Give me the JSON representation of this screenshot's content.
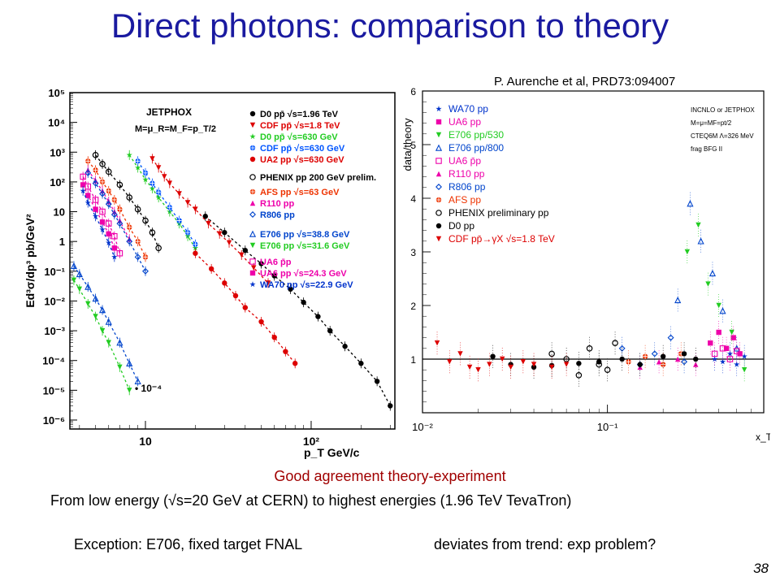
{
  "slide": {
    "title": "Direct photons: comparison to theory",
    "citation": "P. Aurenche et al, PRD73:094007",
    "agreement": "Good agreement theory-experiment",
    "range_text": "From low energy (√s=20 GeV at CERN) to highest energies (1.96 TeV TevaTron)",
    "exception_text": "Exception: E706, fixed target FNAL",
    "deviation_text": "deviates from trend: exp problem?",
    "slide_number": "38"
  },
  "chart_data": [
    {
      "type": "scatter",
      "title": "",
      "xlabel": "p_T GeV/c",
      "ylabel": "Ed³σ/dp³ pb/GeV²",
      "xscale": "log",
      "yscale": "log",
      "xlim": [
        3.5,
        320
      ],
      "ylim": [
        5e-07,
        100000
      ],
      "x_ticks": [
        "10",
        "10²"
      ],
      "y_ticks": [
        "10⁵",
        "10⁴",
        "10³",
        "10²",
        "10",
        "1",
        "10⁻¹",
        "10⁻²",
        "10⁻³",
        "10⁻⁴",
        "10⁻⁵",
        "10⁻⁶"
      ],
      "annotations": [
        "JETPHOX",
        "M=μ_R=M_F=p_T/2",
        "• 10⁻⁴"
      ],
      "legend_position": "top-right",
      "series": [
        {
          "name": "D0 pp̄ √s=1.96 TeV",
          "color": "#000000",
          "marker": "circle-filled",
          "x": [
            23,
            30,
            40,
            50,
            60,
            75,
            90,
            110,
            130,
            160,
            200,
            250,
            300
          ],
          "y": [
            7,
            2,
            0.5,
            0.18,
            0.07,
            0.025,
            0.009,
            0.003,
            0.001,
            0.0003,
            8e-05,
            2e-05,
            3e-06
          ]
        },
        {
          "name": "CDF pp̄ √s=1.8 TeV",
          "color": "#dd0000",
          "marker": "triangle-down",
          "x": [
            11,
            12,
            13,
            14,
            16,
            18,
            20,
            24,
            28,
            32,
            38,
            45,
            55
          ],
          "y": [
            600,
            300,
            150,
            90,
            40,
            20,
            12,
            4,
            1.8,
            0.9,
            0.35,
            0.13,
            0.04
          ]
        },
        {
          "name": "D0 pp̄ √s=630 GeV",
          "color": "#22cc22",
          "marker": "star",
          "x": [
            8,
            9,
            10,
            11,
            12,
            14,
            16,
            18,
            20
          ],
          "y": [
            800,
            300,
            120,
            60,
            30,
            10,
            4,
            1.5,
            0.6
          ]
        },
        {
          "name": "CDF pp̄ √s=630 GeV",
          "color": "#0055ff",
          "marker": "cross-circle",
          "x": [
            9,
            10,
            11,
            12,
            14,
            16,
            18,
            20
          ],
          "y": [
            500,
            200,
            90,
            45,
            14,
            5,
            2,
            0.8
          ]
        },
        {
          "name": "UA2 pp √s=630 GeV",
          "color": "#dd0000",
          "marker": "circle-filled",
          "x": [
            20,
            25,
            30,
            35,
            40,
            50,
            60,
            70,
            80
          ],
          "y": [
            0.4,
            0.12,
            0.04,
            0.015,
            0.006,
            0.002,
            0.0006,
            0.0002,
            8e-05
          ]
        },
        {
          "name": "PHENIX pp 200 GeV prelim.",
          "color": "#000000",
          "marker": "circle-open",
          "x": [
            5,
            5.5,
            6,
            7,
            8,
            9,
            10,
            11,
            12
          ],
          "y": [
            800,
            400,
            220,
            80,
            30,
            12,
            5,
            2,
            0.6
          ]
        },
        {
          "name": "AFS pp √s=63 GeV",
          "color": "#ee3300",
          "marker": "cross-circle",
          "x": [
            4.5,
            5,
            5.5,
            6,
            6.5,
            7,
            8,
            9,
            10
          ],
          "y": [
            500,
            250,
            100,
            50,
            25,
            12,
            3,
            1,
            0.3
          ]
        },
        {
          "name": "R110 pp",
          "color": "#ee00aa",
          "marker": "triangle-up",
          "x": [
            4.5,
            5,
            5.5,
            6,
            6.5,
            7,
            8
          ],
          "y": [
            250,
            110,
            50,
            22,
            10,
            5,
            1.2
          ]
        },
        {
          "name": "R806 pp",
          "color": "#0044cc",
          "marker": "diamond-open",
          "x": [
            4.5,
            5,
            5.5,
            6,
            6.5,
            7,
            8,
            9,
            10
          ],
          "y": [
            200,
            90,
            40,
            18,
            8,
            4,
            1,
            0.3,
            0.1
          ]
        },
        {
          "name": "E706 pp √s=38.8 GeV",
          "color": "#0044cc",
          "marker": "triangle-open",
          "x": [
            3.7,
            4,
            4.5,
            5,
            5.5,
            6,
            7,
            8,
            9
          ],
          "y": [
            0.15,
            0.08,
            0.03,
            0.012,
            0.005,
            0.002,
            0.0004,
            8e-05,
            2e-05
          ]
        },
        {
          "name": "E706 pp √s=31.6 GeV",
          "color": "#22cc22",
          "marker": "triangle-down",
          "x": [
            3.7,
            4,
            4.5,
            5,
            5.5,
            6,
            7,
            8
          ],
          "y": [
            0.05,
            0.025,
            0.008,
            0.003,
            0.001,
            0.0004,
            6e-05,
            1e-05
          ]
        },
        {
          "name": "UA6 p̄p",
          "color": "#ee00aa",
          "marker": "square-open",
          "x": [
            4.2,
            4.5,
            5,
            5.5,
            6,
            6.5,
            7
          ],
          "y": [
            150,
            70,
            25,
            10,
            4,
            1.5,
            0.4
          ]
        },
        {
          "name": "UA6 pp √s=24.3 GeV",
          "color": "#ee00aa",
          "marker": "square-filled",
          "x": [
            4.2,
            4.5,
            5,
            5.5,
            6,
            6.5
          ],
          "y": [
            80,
            35,
            12,
            4.5,
            1.8,
            0.6
          ]
        },
        {
          "name": "WA70 pp √s=22.9 GeV",
          "color": "#0033cc",
          "marker": "star",
          "x": [
            4.2,
            4.5,
            5,
            5.5,
            6,
            6.5
          ],
          "y": [
            50,
            20,
            7,
            2.5,
            0.9,
            0.3
          ]
        }
      ]
    },
    {
      "type": "scatter",
      "title": "",
      "xlabel": "x_T",
      "ylabel": "data/theory",
      "xscale": "log",
      "xlim": [
        0.01,
        0.7
      ],
      "ylim": [
        0,
        6
      ],
      "x_ticks": [
        "10⁻²",
        "10⁻¹"
      ],
      "y_ticks": [
        "1",
        "2",
        "3",
        "4",
        "5",
        "6"
      ],
      "reference_line": 1,
      "annotations": [
        "INCNLO or JETPHOX",
        "M=μ=MF=pt/2",
        "CTEQ6M Λ=326 MeV",
        "frag BFG II"
      ],
      "legend_position": "top-left",
      "series": [
        {
          "name": "WA70 pp",
          "color": "#0033cc",
          "marker": "star",
          "x": [
            0.38,
            0.42,
            0.46,
            0.5,
            0.55
          ],
          "y": [
            1.0,
            0.95,
            1.1,
            0.9,
            1.05
          ]
        },
        {
          "name": "UA6 pp",
          "color": "#ee00aa",
          "marker": "square-filled",
          "x": [
            0.36,
            0.4,
            0.44,
            0.48,
            0.52
          ],
          "y": [
            1.3,
            1.5,
            1.2,
            1.4,
            1.1
          ]
        },
        {
          "name": "E706 pp/530",
          "color": "#22cc22",
          "marker": "triangle-down",
          "x": [
            0.27,
            0.31,
            0.35,
            0.4,
            0.47,
            0.55
          ],
          "y": [
            3.0,
            3.5,
            2.4,
            2.0,
            1.5,
            0.8
          ]
        },
        {
          "name": "E706 pp/800",
          "color": "#0044cc",
          "marker": "triangle-open",
          "x": [
            0.24,
            0.28,
            0.32,
            0.37,
            0.42,
            0.5
          ],
          "y": [
            2.1,
            3.9,
            3.2,
            2.6,
            1.9,
            1.2
          ]
        },
        {
          "name": "UA6 p̄p",
          "color": "#ee00aa",
          "marker": "square-open",
          "x": [
            0.38,
            0.42,
            0.46,
            0.5
          ],
          "y": [
            1.1,
            1.2,
            1.0,
            1.15
          ]
        },
        {
          "name": "R110 pp",
          "color": "#ee00aa",
          "marker": "triangle-up",
          "x": [
            0.15,
            0.19,
            0.24,
            0.3
          ],
          "y": [
            0.85,
            0.95,
            1.0,
            0.9
          ]
        },
        {
          "name": "R806 pp",
          "color": "#0044cc",
          "marker": "diamond-open",
          "x": [
            0.12,
            0.15,
            0.18,
            0.22,
            0.26
          ],
          "y": [
            1.2,
            0.9,
            1.1,
            1.4,
            0.95
          ]
        },
        {
          "name": "AFS pp",
          "color": "#ee3300",
          "marker": "cross-circle",
          "x": [
            0.13,
            0.16,
            0.2,
            0.25
          ],
          "y": [
            0.95,
            1.05,
            0.9,
            1.1
          ]
        },
        {
          "name": "PHENIX preliminary pp",
          "color": "#000000",
          "marker": "circle-open",
          "x": [
            0.05,
            0.06,
            0.07,
            0.08,
            0.09,
            0.1,
            0.11
          ],
          "y": [
            1.1,
            1.0,
            0.7,
            1.2,
            0.9,
            0.8,
            1.3
          ]
        },
        {
          "name": "D0 pp",
          "color": "#000000",
          "marker": "circle-filled",
          "x": [
            0.024,
            0.03,
            0.04,
            0.05,
            0.07,
            0.09,
            0.12,
            0.15,
            0.2,
            0.26,
            0.3
          ],
          "y": [
            1.05,
            0.9,
            0.85,
            0.88,
            0.92,
            0.95,
            1.0,
            0.9,
            1.05,
            1.1,
            1.0
          ]
        },
        {
          "name": "CDF pp̄→γX √s=1.8 TeV",
          "color": "#dd0000",
          "marker": "triangle-down",
          "x": [
            0.012,
            0.014,
            0.016,
            0.018,
            0.02,
            0.023,
            0.027,
            0.03,
            0.035,
            0.04,
            0.05,
            0.06
          ],
          "y": [
            1.3,
            0.95,
            1.1,
            0.85,
            0.8,
            0.9,
            1.0,
            0.85,
            0.95,
            0.9,
            0.85,
            0.9
          ]
        }
      ]
    }
  ]
}
